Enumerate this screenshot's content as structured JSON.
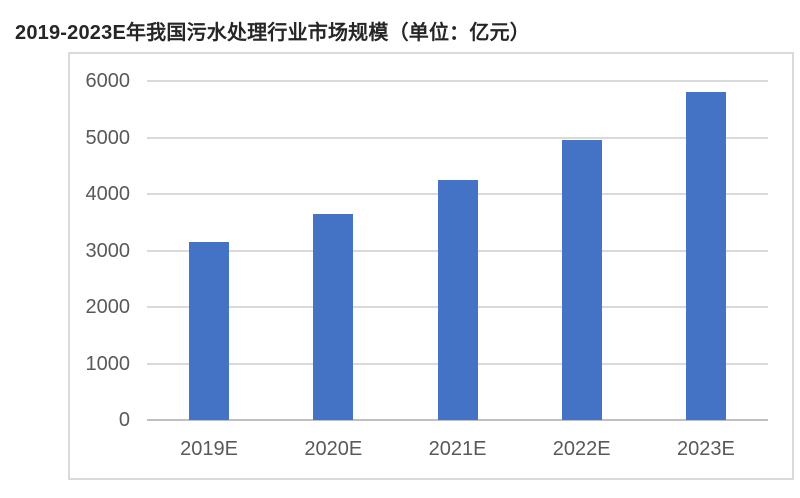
{
  "chart_data": {
    "type": "bar",
    "title": "2019-2023E年我国污水处理行业市场规模（单位：亿元）",
    "unit_label": "亿元",
    "categories": [
      "2019E",
      "2020E",
      "2021E",
      "2022E",
      "2023E"
    ],
    "values": [
      3150,
      3650,
      4250,
      4950,
      5800
    ],
    "ylim": [
      0,
      6000
    ],
    "yticks": [
      0,
      1000,
      2000,
      3000,
      4000,
      5000,
      6000
    ],
    "xlabel": "",
    "ylabel": "",
    "legend": "none",
    "grid": "horizontal",
    "colors": {
      "bar": "#4472C4",
      "gridline": "#d9d9d9",
      "zero_axis": "#c0c0c0",
      "tick_label": "#595959",
      "title": "#262626",
      "frame_border": "#dadada",
      "background": "#ffffff"
    }
  }
}
